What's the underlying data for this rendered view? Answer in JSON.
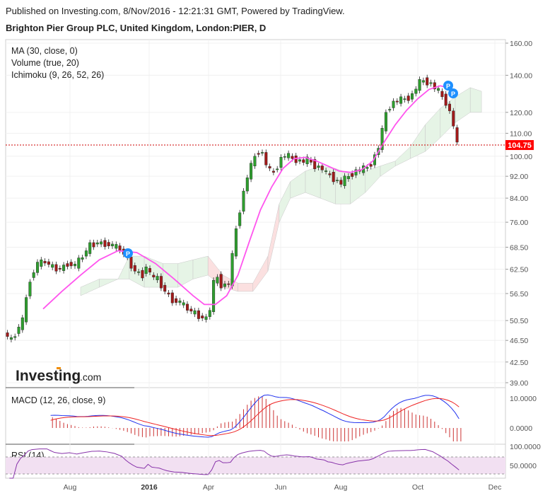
{
  "header": {
    "published": "Published on Investing.com, 8/Nov/2016 - 12:21:31 GMT, Powered by TradingView.",
    "symbol": "Brighton Pier Group PLC, United Kingdom, London:PIER, D"
  },
  "indicators": {
    "ma": "MA (30, close, 0)",
    "volume": "Volume (true, 20)",
    "ichimoku": "Ichimoku (9, 26, 52, 26)",
    "macd": "MACD (12, 26, close, 9)",
    "rsi": "RSI (14)"
  },
  "logo": {
    "main": "Investing",
    "suffix": ".com"
  },
  "colors": {
    "up": "#2e9e2e",
    "down": "#a21a1a",
    "ma": "#ff55ee",
    "macd_line": "#2233ee",
    "signal_line": "#ee2222",
    "histogram": "#cc3333",
    "rsi_line": "#8833aa",
    "rsi_band": "#f2e0f2",
    "cloud_bull": "#e6f4e6",
    "cloud_bear": "#fbe0e0",
    "last_price_bg": "#ff0000",
    "pin": "#1e90ff"
  },
  "chart_data": {
    "type": "candlestick",
    "price_axis": {
      "ticks": [
        "160.00",
        "140.00",
        "120.00",
        "110.00",
        "100.00",
        "92.00",
        "84.00",
        "76.00",
        "68.50",
        "62.50",
        "56.50",
        "50.50",
        "46.50",
        "42.50",
        "39.00"
      ],
      "scale": "log"
    },
    "last_price": "104.75",
    "x_ticks": [
      {
        "label": "Aug",
        "bold": false
      },
      {
        "label": "2016",
        "bold": true
      },
      {
        "label": "Apr",
        "bold": false
      },
      {
        "label": "Jun",
        "bold": false
      },
      {
        "label": "Aug",
        "bold": false
      },
      {
        "label": "Oct",
        "bold": false
      },
      {
        "label": "Dec",
        "bold": false
      }
    ],
    "close_series": [
      [
        0,
        48.0
      ],
      [
        2,
        46.5
      ],
      [
        5,
        50.5
      ],
      [
        7,
        60.0
      ],
      [
        9,
        64.0
      ],
      [
        11,
        64.5
      ],
      [
        13,
        63.0
      ],
      [
        15,
        62.5
      ],
      [
        17,
        64.0
      ],
      [
        19,
        63.5
      ],
      [
        21,
        66.0
      ],
      [
        23,
        69.0
      ],
      [
        25,
        69.8
      ],
      [
        27,
        69.5
      ],
      [
        29,
        69.0
      ],
      [
        31,
        68.0
      ],
      [
        33,
        65.0
      ],
      [
        35,
        62.0
      ],
      [
        37,
        61.0
      ],
      [
        38,
        63.5
      ],
      [
        39,
        61.0
      ],
      [
        41,
        60.0
      ],
      [
        43,
        57.0
      ],
      [
        45,
        55.0
      ],
      [
        47,
        54.5
      ],
      [
        49,
        53.0
      ],
      [
        51,
        52.0
      ],
      [
        53,
        51.0
      ],
      [
        54,
        51.0
      ],
      [
        55,
        53.0
      ],
      [
        56,
        59.0
      ],
      [
        57,
        60.5
      ],
      [
        58,
        58.5
      ],
      [
        59,
        58.5
      ],
      [
        60,
        59.0
      ],
      [
        61,
        66.0
      ],
      [
        62,
        74.0
      ],
      [
        63,
        80.0
      ],
      [
        64,
        86.0
      ],
      [
        65,
        92.0
      ],
      [
        66,
        96.0
      ],
      [
        67,
        100.0
      ],
      [
        68,
        102.0
      ],
      [
        69,
        101.0
      ],
      [
        70,
        97.0
      ],
      [
        71,
        94.0
      ],
      [
        72,
        93.5
      ],
      [
        73,
        96.0
      ],
      [
        74,
        99.0
      ],
      [
        75,
        100.5
      ],
      [
        76,
        100.0
      ],
      [
        77,
        99.0
      ],
      [
        78,
        98.5
      ],
      [
        79,
        98.0
      ],
      [
        80,
        98.0
      ],
      [
        81,
        98.5
      ],
      [
        82,
        97.5
      ],
      [
        83,
        96.0
      ],
      [
        84,
        95.5
      ],
      [
        85,
        95.0
      ],
      [
        86,
        93.0
      ],
      [
        87,
        92.5
      ],
      [
        88,
        91.0
      ],
      [
        89,
        90.0
      ],
      [
        90,
        89.5
      ],
      [
        91,
        91.0
      ],
      [
        92,
        92.0
      ],
      [
        93,
        93.0
      ],
      [
        94,
        94.0
      ],
      [
        95,
        94.5
      ],
      [
        96,
        95.0
      ],
      [
        97,
        95.5
      ],
      [
        98,
        97.0
      ],
      [
        99,
        100.0
      ],
      [
        100,
        104.0
      ],
      [
        101,
        111.0
      ],
      [
        102,
        120.0
      ],
      [
        103,
        123.0
      ],
      [
        104,
        125.0
      ],
      [
        105,
        126.0
      ],
      [
        106,
        126.5
      ],
      [
        107,
        127.0
      ],
      [
        108,
        127.5
      ],
      [
        109,
        129.0
      ],
      [
        110,
        133.0
      ],
      [
        111,
        136.0
      ],
      [
        112,
        137.0
      ],
      [
        113,
        136.0
      ],
      [
        114,
        135.0
      ],
      [
        115,
        133.0
      ],
      [
        116,
        131.0
      ],
      [
        117,
        128.0
      ],
      [
        118,
        125.0
      ],
      [
        119,
        120.0
      ],
      [
        120,
        114.0
      ],
      [
        121,
        104.75
      ]
    ],
    "ma_series": [
      [
        10,
        53.0
      ],
      [
        15,
        57.0
      ],
      [
        20,
        61.0
      ],
      [
        25,
        65.0
      ],
      [
        30,
        67.5
      ],
      [
        35,
        67.0
      ],
      [
        40,
        64.0
      ],
      [
        45,
        60.0
      ],
      [
        50,
        56.0
      ],
      [
        53,
        54.0
      ],
      [
        56,
        54.0
      ],
      [
        59,
        56.0
      ],
      [
        62,
        61.0
      ],
      [
        65,
        70.0
      ],
      [
        68,
        80.0
      ],
      [
        71,
        88.0
      ],
      [
        74,
        95.0
      ],
      [
        77,
        99.0
      ],
      [
        80,
        99.5
      ],
      [
        83,
        98.0
      ],
      [
        86,
        96.0
      ],
      [
        89,
        94.0
      ],
      [
        92,
        93.5
      ],
      [
        95,
        94.5
      ],
      [
        98,
        98.0
      ],
      [
        101,
        106.0
      ],
      [
        104,
        114.0
      ],
      [
        107,
        121.0
      ],
      [
        110,
        127.0
      ],
      [
        113,
        132.0
      ],
      [
        116,
        134.0
      ],
      [
        118,
        133.0
      ]
    ],
    "cloud_series": [
      [
        20,
        56.0,
        58.0
      ],
      [
        25,
        58.0,
        60.0
      ],
      [
        30,
        60.0,
        60.0
      ],
      [
        33,
        60.0,
        66.0
      ],
      [
        37,
        58.0,
        66.0
      ],
      [
        42,
        58.0,
        64.0
      ],
      [
        46,
        58.0,
        64.0
      ],
      [
        50,
        60.0,
        65.0
      ],
      [
        54,
        61.0,
        66.0
      ],
      [
        58,
        58.0,
        61.0
      ],
      [
        62,
        57.0,
        59.0
      ],
      [
        66,
        57.0,
        59.0
      ],
      [
        70,
        62.0,
        66.0
      ],
      [
        73,
        76.0,
        82.0
      ],
      [
        76,
        84.0,
        90.0
      ],
      [
        80,
        86.0,
        94.0
      ],
      [
        84,
        84.0,
        96.0
      ],
      [
        88,
        82.0,
        95.0
      ],
      [
        92,
        82.0,
        93.0
      ],
      [
        96,
        86.0,
        94.0
      ],
      [
        100,
        92.0,
        96.0
      ],
      [
        104,
        96.0,
        98.0
      ],
      [
        108,
        99.0,
        104.0
      ],
      [
        112,
        102.0,
        114.0
      ],
      [
        116,
        108.0,
        122.0
      ],
      [
        120,
        115.0,
        128.0
      ],
      [
        124,
        120.0,
        133.0
      ],
      [
        127,
        120.0,
        131.0
      ]
    ],
    "pin_label": "P",
    "macd_range": {
      "ticks": [
        "10.0000",
        "0.0000"
      ]
    },
    "rsi_range": {
      "ticks": [
        "100.0000",
        "50.0000"
      ]
    }
  }
}
